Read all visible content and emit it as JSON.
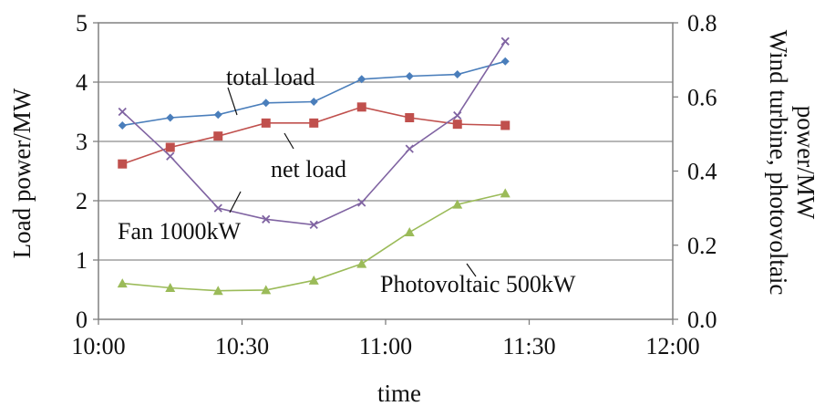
{
  "chart_data": {
    "type": "line",
    "xlabel": "time",
    "ylabel_left": "Load power/MW",
    "ylabel_right_lines": [
      "Wind turbine, photovoltaic",
      "power/MW"
    ],
    "x_ticks": [
      "10:00",
      "10:30",
      "11:00",
      "11:30",
      "12:00"
    ],
    "x_tick_values": [
      0,
      30,
      60,
      90,
      120
    ],
    "xlim": [
      0,
      120
    ],
    "ylim_left": [
      0,
      5
    ],
    "y_ticks_left": [
      "0",
      "1",
      "2",
      "3",
      "4",
      "5"
    ],
    "ylim_right": [
      0,
      0.8
    ],
    "y_ticks_right": [
      "0.0",
      "0.2",
      "0.4",
      "0.6",
      "0.8"
    ],
    "grid": "horizontal",
    "x": [
      5,
      15,
      25,
      35,
      45,
      55,
      65,
      75,
      85
    ],
    "series": [
      {
        "name": "total load",
        "axis": "left",
        "color": "#4a7ebb",
        "marker": "diamond",
        "values": [
          3.27,
          3.4,
          3.45,
          3.65,
          3.67,
          4.05,
          4.1,
          4.13,
          4.35
        ]
      },
      {
        "name": "net load",
        "axis": "left",
        "color": "#c0504d",
        "marker": "square",
        "values": [
          2.62,
          2.9,
          3.09,
          3.31,
          3.31,
          3.58,
          3.4,
          3.29,
          3.27
        ]
      },
      {
        "name": "Fan 1000kW",
        "axis": "right",
        "color": "#8064a2",
        "marker": "x",
        "values": [
          0.56,
          0.44,
          0.3,
          0.27,
          0.255,
          0.315,
          0.46,
          0.55,
          0.75
        ]
      },
      {
        "name": "Photovoltaic 500kW",
        "axis": "right",
        "color": "#9bbb59",
        "marker": "triangle",
        "values": [
          0.097,
          0.085,
          0.077,
          0.079,
          0.105,
          0.15,
          0.235,
          0.31,
          0.34
        ]
      }
    ],
    "annotations": {
      "total_load": "total load",
      "net_load": "net load",
      "fan": "Fan 1000kW",
      "photovoltaic": "Photovoltaic 500kW"
    }
  }
}
